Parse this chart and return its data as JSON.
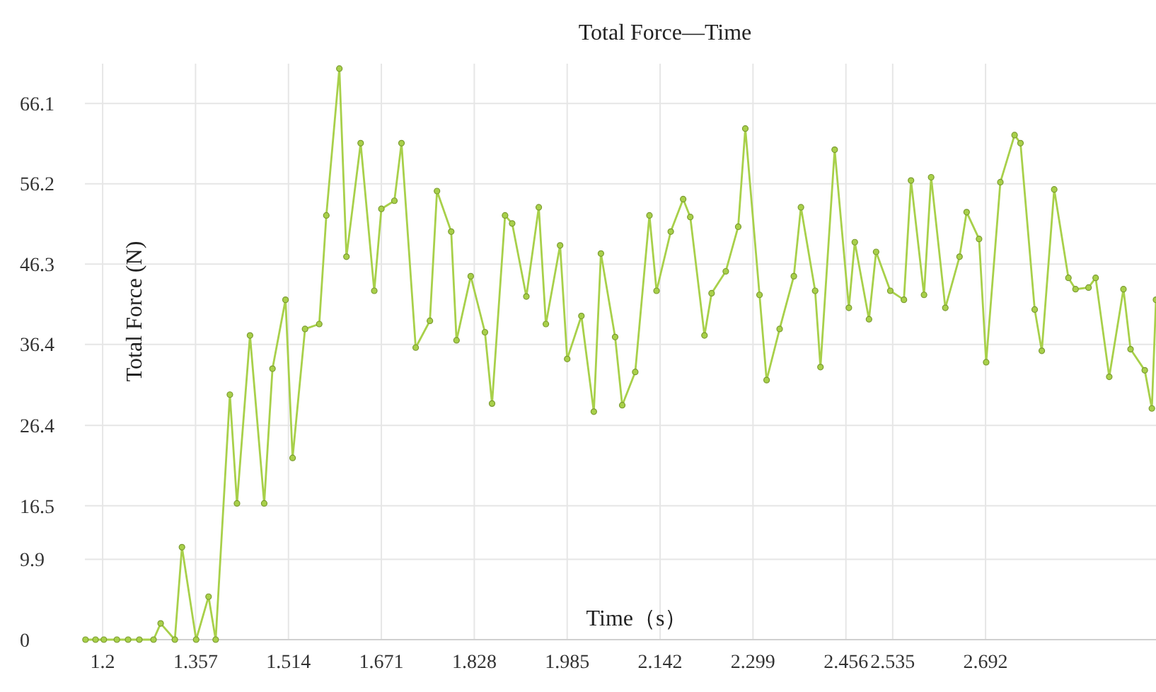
{
  "chart_data": {
    "type": "line",
    "title": "Total Force—Time",
    "xlabel": "Time（s）",
    "ylabel": "Total Force (N)",
    "xlim": [
      1.17,
      2.98
    ],
    "xticks": [
      1.2,
      1.357,
      1.514,
      1.671,
      1.828,
      1.985,
      2.142,
      2.299,
      2.456,
      2.535,
      2.692
    ],
    "ylim": [
      0,
      71
    ],
    "yticks": [
      0,
      9.9,
      16.5,
      26.4,
      36.4,
      46.3,
      56.2,
      66.1
    ],
    "grid": true,
    "marker": "circle",
    "line_style": "solid",
    "series": [
      {
        "color": "#a8d04a",
        "x": [
          1.171,
          1.188,
          1.202,
          1.224,
          1.243,
          1.262,
          1.286,
          1.298,
          1.322,
          1.334,
          1.358,
          1.379,
          1.391,
          1.415,
          1.427,
          1.449,
          1.473,
          1.487,
          1.509,
          1.521,
          1.542,
          1.566,
          1.578,
          1.6,
          1.612,
          1.636,
          1.659,
          1.671,
          1.693,
          1.705,
          1.729,
          1.753,
          1.765,
          1.789,
          1.798,
          1.822,
          1.846,
          1.858,
          1.88,
          1.892,
          1.916,
          1.937,
          1.949,
          1.973,
          1.985,
          2.009,
          2.03,
          2.042,
          2.066,
          2.078,
          2.1,
          2.124,
          2.136,
          2.16,
          2.181,
          2.193,
          2.217,
          2.229,
          2.253,
          2.274,
          2.286,
          2.31,
          2.322,
          2.344,
          2.368,
          2.38,
          2.404,
          2.413,
          2.437,
          2.461,
          2.471,
          2.495,
          2.507,
          2.531,
          2.554,
          2.566,
          2.588,
          2.6,
          2.624,
          2.648,
          2.66,
          2.681,
          2.693,
          2.717,
          2.741,
          2.751,
          2.775,
          2.787,
          2.808,
          2.832,
          2.844,
          2.866,
          2.878,
          2.901,
          2.925,
          2.937,
          2.961,
          2.973,
          2.98
        ],
        "values": [
          0,
          0,
          0,
          0,
          0,
          0,
          0,
          2,
          0,
          11.4,
          0,
          5.3,
          0,
          30.2,
          16.8,
          37.5,
          16.8,
          33.4,
          41.9,
          22.4,
          38.3,
          38.9,
          52.3,
          70.4,
          47.2,
          61.2,
          43.0,
          53.1,
          54.1,
          61.2,
          36.0,
          39.3,
          55.3,
          50.3,
          36.9,
          44.8,
          37.9,
          29.1,
          52.3,
          51.3,
          42.3,
          53.3,
          38.9,
          48.6,
          34.6,
          39.9,
          28.1,
          47.6,
          37.3,
          28.9,
          33.0,
          52.3,
          43.0,
          50.3,
          54.3,
          52.1,
          37.5,
          42.7,
          45.4,
          50.9,
          63.0,
          42.5,
          32.0,
          38.3,
          44.8,
          53.3,
          43.0,
          33.6,
          60.4,
          40.9,
          49.0,
          39.5,
          47.8,
          43.0,
          41.9,
          56.6,
          42.5,
          57.0,
          40.9,
          47.2,
          52.7,
          49.4,
          34.2,
          56.4,
          62.2,
          61.2,
          40.7,
          35.6,
          55.5,
          44.6,
          43.2,
          43.4,
          44.6,
          32.4,
          43.2,
          35.8,
          33.2,
          28.5,
          41.9
        ]
      }
    ]
  }
}
